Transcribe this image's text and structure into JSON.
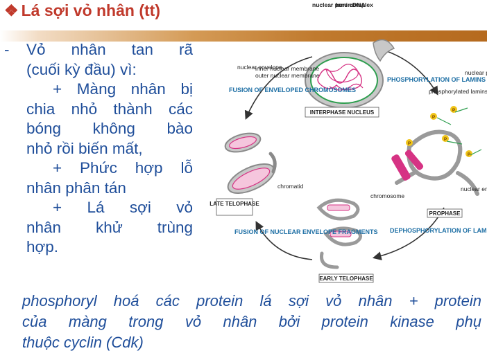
{
  "title": {
    "bullet": "❖",
    "text": "Lá sợi vỏ nhân (tt)"
  },
  "left_text": {
    "dash": "-",
    "line1": "Vỏ nhân tan rã",
    "line2": "(cuối kỳ đầu) vì:",
    "line3": "+ Màng nhân bị",
    "line4": "chia nhỏ thành các",
    "line5": "bóng không bào",
    "line6": "nhỏ rồi biến mất,",
    "line7": "+ Phức hợp lỗ",
    "line8": "nhân phân tán",
    "line9": "+ Lá sợi vỏ",
    "line10": "nhân khử trùng",
    "line11": "hợp."
  },
  "bottom_text": {
    "line1": "phosphoryl hoá các protein lá sợi vỏ nhân + protein",
    "line2": "của màng trong vỏ nhân bởi protein kinase phụ",
    "line3": "thuộc cyclin (Cdk)"
  },
  "diagram": {
    "nuclear_pore_complex": "nuclear pore complex",
    "lamins": "lamins",
    "dna": "DNA",
    "nuclear_envelope": "nuclear envelope",
    "inner_membrane": "inner nuclear membrane",
    "outer_membrane": "outer nuclear membrane",
    "fusion_enveloped": "FUSION OF ENVELOPED CHROMOSOMES",
    "phosphorylation": "PHOSPHORYLATION OF LAMINS",
    "interphase": "INTERPHASE NUCLEUS",
    "phosphorylated_lamins": "phosphorylated lamins",
    "nuclear_pore_proteins": "nuclear pore complex proteins",
    "chromatid": "chromatid",
    "chromosome": "chromosome",
    "late_telophase": "LATE TELOPHASE",
    "prophase": "PROPHASE",
    "nuclear_envelope_fragment": "nuclear envelope fragment",
    "fusion_fragments": "FUSION OF NUCLEAR ENVELOPE FRAGMENTS",
    "dephosphorylation": "DEPHOSPHORYLATION OF LAMINS",
    "early_telophase": "EARLY TELOPHASE",
    "p_label": "P"
  },
  "colors": {
    "title": "#c0392b",
    "body_text": "#1f4e9a",
    "diagram_label": "#1c6ea4",
    "chromatin": "#d63384",
    "lamina": "#2e9e4f",
    "membrane": "#9a9a9a"
  }
}
